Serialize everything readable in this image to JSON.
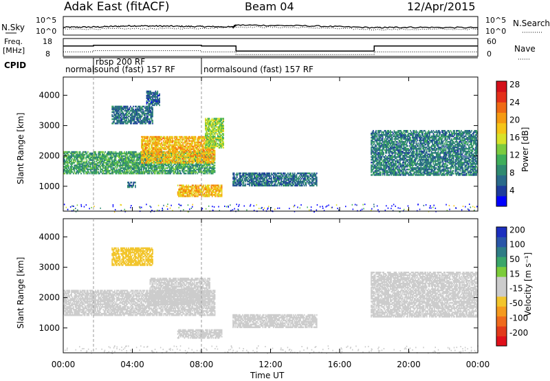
{
  "header": {
    "title": "Adak East (fitACF)",
    "beam": "Beam 04",
    "date": "12/Apr/2015"
  },
  "noise_panel": {
    "left_label": "N.Sky",
    "right_label": "N.Search",
    "left_ticks": [
      "10^5",
      "10^0"
    ],
    "right_ticks": [
      "10^5",
      "10^0"
    ]
  },
  "freq_panel": {
    "left_label_1": "Freq.",
    "left_label_2": "[MHz]",
    "right_label": "Nave",
    "left_ticks": [
      "18",
      "8"
    ],
    "right_ticks": [
      "60",
      "0"
    ],
    "freq_steps": [
      {
        "t0": 0.0,
        "t1": 1.75,
        "value": 13.8
      },
      {
        "t0": 1.75,
        "t1": 8.0,
        "value": 14.2
      },
      {
        "t0": 8.0,
        "t1": 10.0,
        "value": 13.8
      },
      {
        "t0": 10.0,
        "t1": 18.0,
        "value": 11.0
      },
      {
        "t0": 18.0,
        "t1": 24.0,
        "value": 13.8
      }
    ]
  },
  "cpid": {
    "label": "CPID",
    "entries": [
      {
        "text": "normalsound (fast) 157 RF",
        "t": 0.0,
        "row": 1
      },
      {
        "text": "rbsp 200 RF",
        "t": 1.75,
        "row": 0
      },
      {
        "text": "normalsound (fast) 157 RF",
        "t": 8.0,
        "row": 1
      }
    ]
  },
  "power_panel": {
    "ylabel": "Slant Range [km]",
    "colorbar_label": "Power [dB]",
    "colorbar_ticks": [
      "4",
      "8",
      "12",
      "16",
      "20",
      "24",
      "28"
    ],
    "colorbar_colors": [
      "#0000ff",
      "#1e3c9c",
      "#2a6a8a",
      "#2f8a70",
      "#3fae5a",
      "#7ccb3f",
      "#d8e22a",
      "#f5c518",
      "#f59a12",
      "#ef6a14",
      "#e4301a",
      "#d4101a"
    ]
  },
  "velocity_panel": {
    "ylabel": "Slant Range [km]",
    "colorbar_label": "Velocity [m s⁻¹]",
    "colorbar_ticks": [
      "200",
      "100",
      "50",
      "15",
      "-15",
      "-50",
      "-100",
      "-200"
    ],
    "colorbar_colors": [
      "#1c2fbf",
      "#2a56a8",
      "#2f7d86",
      "#3aa66a",
      "#7ccc3a",
      "#cccccc",
      "#cccccc",
      "#f2c52c",
      "#f59a1e",
      "#ef6a1c",
      "#e23a1a",
      "#e0101a"
    ]
  },
  "time_axis": {
    "label": "Time UT",
    "ticks": [
      "00:00",
      "04:00",
      "08:00",
      "12:00",
      "16:00",
      "20:00",
      "00:00"
    ]
  },
  "range_axis": {
    "ticks": [
      "1000",
      "2000",
      "3000",
      "4000"
    ]
  },
  "chart_data": [
    {
      "type": "line",
      "name": "noise",
      "xlim": [
        0,
        24
      ],
      "ylim": [
        0,
        5
      ],
      "log_scale": true,
      "series": [
        {
          "name": "N.Sky",
          "x": [
            0,
            2,
            4,
            6,
            8,
            9.8,
            10,
            14,
            18,
            20,
            24
          ],
          "values": [
            2.1,
            2.2,
            2.5,
            2.4,
            2.3,
            2.2,
            2.7,
            2.5,
            2.0,
            2.1,
            2.0
          ]
        },
        {
          "name": "N.Search",
          "x": [
            0,
            4,
            8,
            10,
            14,
            18,
            24
          ],
          "values": [
            1.6,
            1.7,
            1.8,
            2.2,
            2.0,
            1.5,
            1.6
          ]
        }
      ]
    },
    {
      "type": "heatmap",
      "name": "power",
      "xlim": [
        0,
        24
      ],
      "ylim": [
        180,
        4600
      ],
      "unit": "dB",
      "regions": [
        {
          "t0": 0.0,
          "t1": 8.8,
          "r0": 1450,
          "r1": 2200,
          "level": 10
        },
        {
          "t0": 4.5,
          "t1": 8.8,
          "r0": 1800,
          "r1": 2700,
          "level": 20
        },
        {
          "t0": 2.8,
          "t1": 5.2,
          "r0": 3100,
          "r1": 3700,
          "level": 6
        },
        {
          "t0": 4.8,
          "t1": 5.6,
          "r0": 3700,
          "r1": 4200,
          "level": 5
        },
        {
          "t0": 3.7,
          "t1": 4.2,
          "r0": 1000,
          "r1": 1200,
          "level": 6
        },
        {
          "t0": 6.6,
          "t1": 9.2,
          "r0": 700,
          "r1": 1100,
          "level": 20
        },
        {
          "t0": 9.8,
          "t1": 14.7,
          "r0": 1050,
          "r1": 1500,
          "level": 6
        },
        {
          "t0": 17.8,
          "t1": 24.0,
          "r0": 1400,
          "r1": 2900,
          "level": 7
        },
        {
          "t0": 8.2,
          "t1": 9.3,
          "r0": 2300,
          "r1": 3300,
          "level": 14
        }
      ]
    },
    {
      "type": "heatmap",
      "name": "velocity",
      "xlim": [
        0,
        24
      ],
      "ylim": [
        180,
        4600
      ],
      "unit": "m s-1",
      "regions": [
        {
          "t0": 0.0,
          "t1": 8.8,
          "r0": 1450,
          "r1": 2300,
          "level": 0
        },
        {
          "t0": 5.0,
          "t1": 8.5,
          "r0": 1800,
          "r1": 2700,
          "level": -30
        },
        {
          "t0": 2.8,
          "t1": 5.2,
          "r0": 3100,
          "r1": 3700,
          "level": -60
        },
        {
          "t0": 6.6,
          "t1": 9.2,
          "r0": 700,
          "r1": 1000,
          "level": 0
        },
        {
          "t0": 9.8,
          "t1": 14.7,
          "r0": 1050,
          "r1": 1500,
          "level": 20
        },
        {
          "t0": 17.8,
          "t1": 24.0,
          "r0": 1400,
          "r1": 2900,
          "level": 0
        }
      ]
    }
  ]
}
